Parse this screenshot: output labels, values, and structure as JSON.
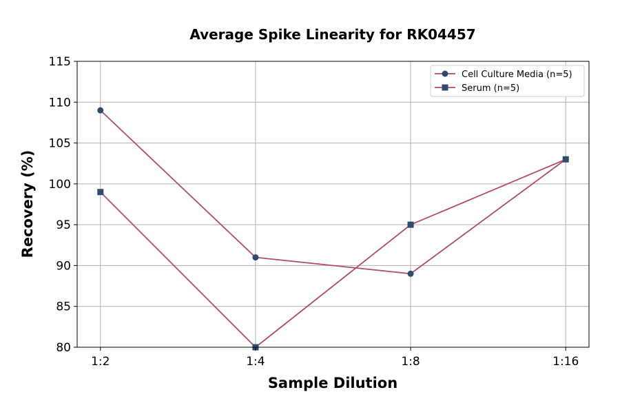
{
  "chart_data": {
    "type": "line",
    "title": "Average Spike Linearity for RK04457",
    "xlabel": "Sample Dilution",
    "ylabel": "Recovery (%)",
    "categories": [
      "1:2",
      "1:4",
      "1:8",
      "1:16"
    ],
    "ylim": [
      80,
      115
    ],
    "yticks": [
      80,
      85,
      90,
      95,
      100,
      105,
      110,
      115
    ],
    "grid": true,
    "legend_position": "top-right",
    "series": [
      {
        "name": "Cell Culture Media (n=5)",
        "values": [
          109,
          91,
          89,
          103
        ],
        "marker": "circle"
      },
      {
        "name": "Serum (n=5)",
        "values": [
          99,
          80,
          95,
          103
        ],
        "marker": "square"
      }
    ],
    "colors": {
      "line": "#b5486f",
      "marker": "#2f4b6e"
    }
  }
}
